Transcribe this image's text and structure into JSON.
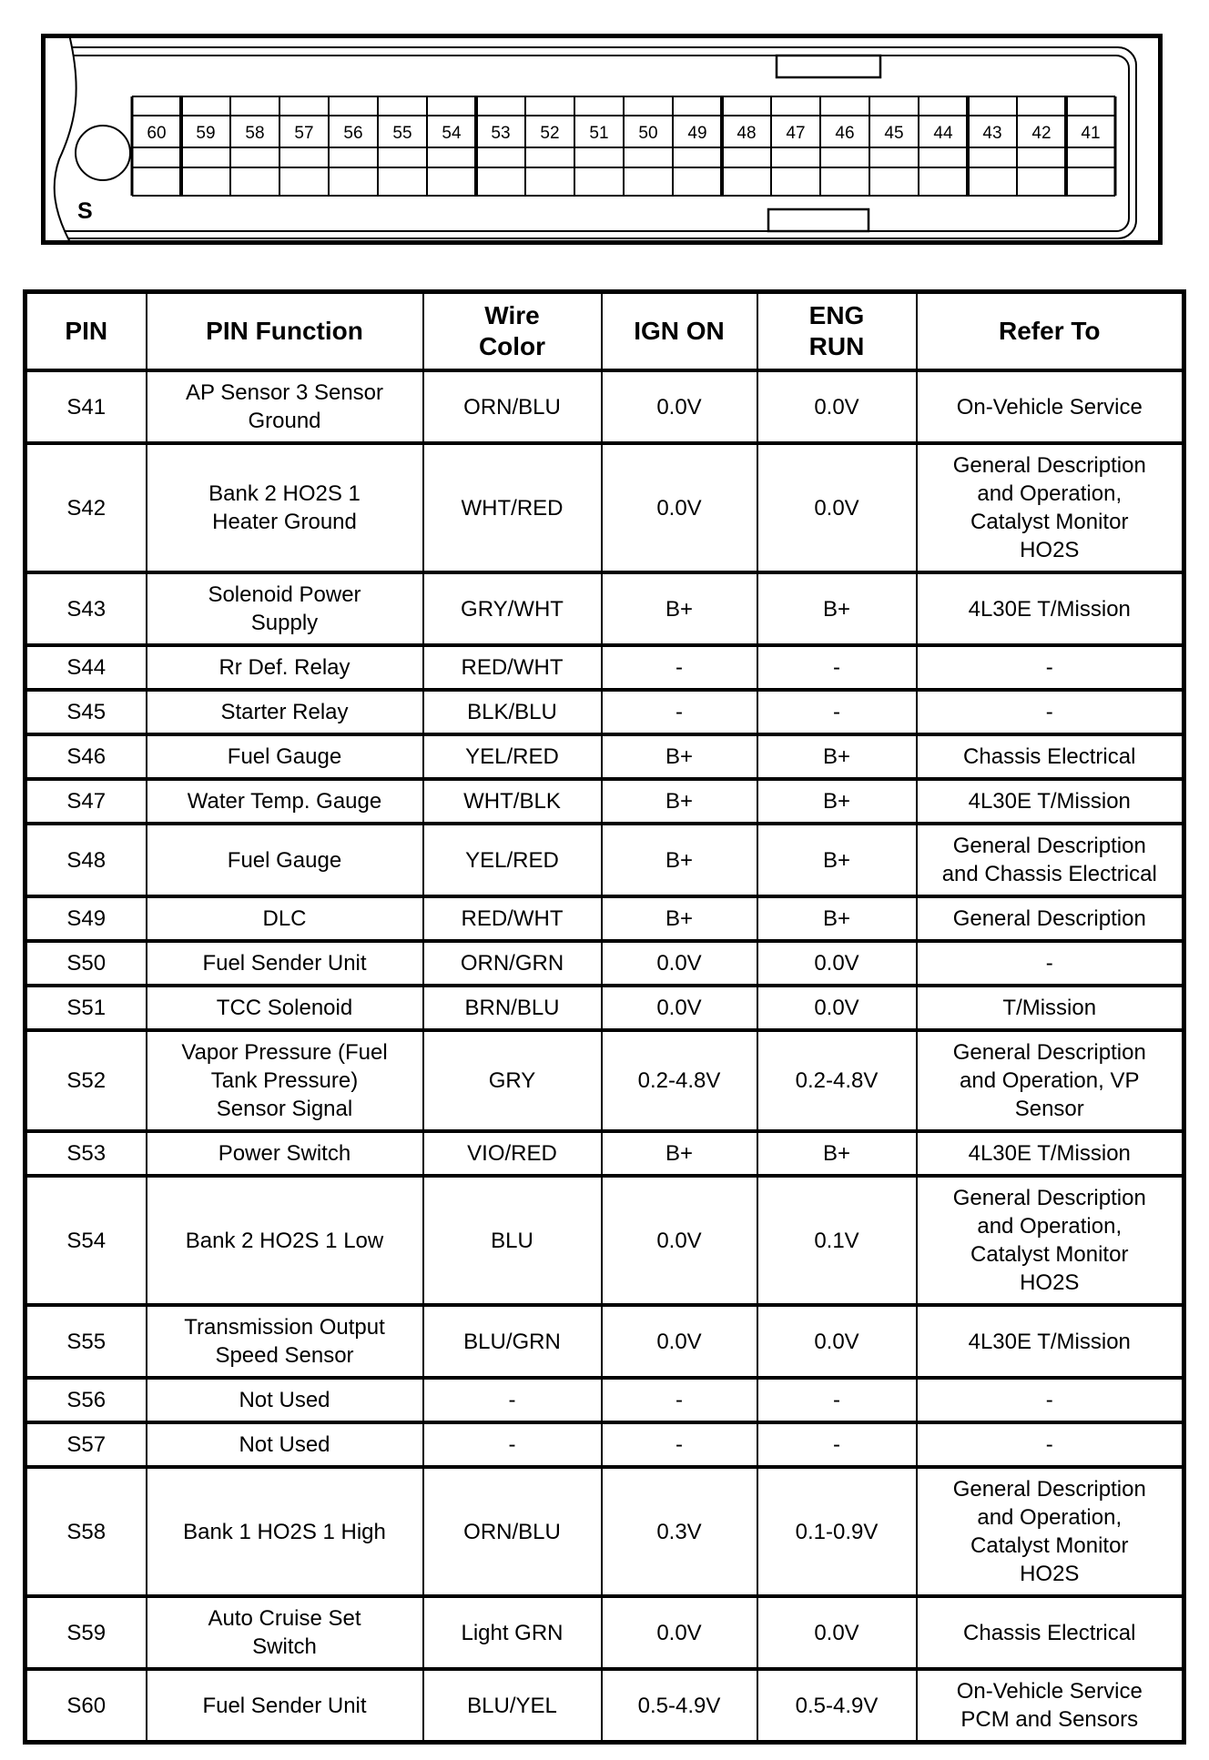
{
  "figure": {
    "connector_label": "S",
    "pin_numbers": [
      "60",
      "59",
      "58",
      "57",
      "56",
      "55",
      "54",
      "53",
      "52",
      "51",
      "50",
      "49",
      "48",
      "47",
      "46",
      "45",
      "44",
      "43",
      "42",
      "41"
    ]
  },
  "table": {
    "headers": {
      "pin": "PIN",
      "function": "PIN Function",
      "wire": "Wire\nColor",
      "ign": "IGN ON",
      "eng": "ENG\nRUN",
      "refer": "Refer To"
    },
    "rows": [
      {
        "pin": "S41",
        "function": "AP Sensor 3 Sensor\nGround",
        "wire": "ORN/BLU",
        "ign": "0.0V",
        "eng": "0.0V",
        "refer": "On-Vehicle Service"
      },
      {
        "pin": "S42",
        "function": "Bank 2 HO2S 1\nHeater Ground",
        "wire": "WHT/RED",
        "ign": "0.0V",
        "eng": "0.0V",
        "refer": "General Description\nand Operation,\nCatalyst Monitor\nHO2S"
      },
      {
        "pin": "S43",
        "function": "Solenoid Power\nSupply",
        "wire": "GRY/WHT",
        "ign": "B+",
        "eng": "B+",
        "refer": "4L30E T/Mission"
      },
      {
        "pin": "S44",
        "function": "Rr Def. Relay",
        "wire": "RED/WHT",
        "ign": "-",
        "eng": "-",
        "refer": "-"
      },
      {
        "pin": "S45",
        "function": "Starter Relay",
        "wire": "BLK/BLU",
        "ign": "-",
        "eng": "-",
        "refer": "-"
      },
      {
        "pin": "S46",
        "function": "Fuel Gauge",
        "wire": "YEL/RED",
        "ign": "B+",
        "eng": "B+",
        "refer": "Chassis Electrical"
      },
      {
        "pin": "S47",
        "function": "Water Temp. Gauge",
        "wire": "WHT/BLK",
        "ign": "B+",
        "eng": "B+",
        "refer": "4L30E T/Mission"
      },
      {
        "pin": "S48",
        "function": "Fuel Gauge",
        "wire": "YEL/RED",
        "ign": "B+",
        "eng": "B+",
        "refer": "General Description\nand Chassis Electrical"
      },
      {
        "pin": "S49",
        "function": "DLC",
        "wire": "RED/WHT",
        "ign": "B+",
        "eng": "B+",
        "refer": "General Description"
      },
      {
        "pin": "S50",
        "function": "Fuel Sender Unit",
        "wire": "ORN/GRN",
        "ign": "0.0V",
        "eng": "0.0V",
        "refer": "-"
      },
      {
        "pin": "S51",
        "function": "TCC Solenoid",
        "wire": "BRN/BLU",
        "ign": "0.0V",
        "eng": "0.0V",
        "refer": "T/Mission"
      },
      {
        "pin": "S52",
        "function": "Vapor Pressure (Fuel\nTank Pressure)\nSensor Signal",
        "wire": "GRY",
        "ign": "0.2-4.8V",
        "eng": "0.2-4.8V",
        "refer": "General Description\nand Operation, VP\nSensor"
      },
      {
        "pin": "S53",
        "function": "Power Switch",
        "wire": "VIO/RED",
        "ign": "B+",
        "eng": "B+",
        "refer": "4L30E T/Mission"
      },
      {
        "pin": "S54",
        "function": "Bank 2 HO2S 1 Low",
        "wire": "BLU",
        "ign": "0.0V",
        "eng": "0.1V",
        "refer": "General Description\nand Operation,\nCatalyst Monitor\nHO2S"
      },
      {
        "pin": "S55",
        "function": "Transmission Output\nSpeed Sensor",
        "wire": "BLU/GRN",
        "ign": "0.0V",
        "eng": "0.0V",
        "refer": "4L30E T/Mission"
      },
      {
        "pin": "S56",
        "function": "Not Used",
        "wire": "-",
        "ign": "-",
        "eng": "-",
        "refer": "-"
      },
      {
        "pin": "S57",
        "function": "Not Used",
        "wire": "-",
        "ign": "-",
        "eng": "-",
        "refer": "-"
      },
      {
        "pin": "S58",
        "function": "Bank 1 HO2S 1 High",
        "wire": "ORN/BLU",
        "ign": "0.3V",
        "eng": "0.1-0.9V",
        "refer": "General Description\nand Operation,\nCatalyst Monitor\nHO2S"
      },
      {
        "pin": "S59",
        "function": "Auto Cruise Set\nSwitch",
        "wire": "Light GRN",
        "ign": "0.0V",
        "eng": "0.0V",
        "refer": "Chassis Electrical"
      },
      {
        "pin": "S60",
        "function": "Fuel Sender Unit",
        "wire": "BLU/YEL",
        "ign": "0.5-4.9V",
        "eng": "0.5-4.9V",
        "refer": "On-Vehicle Service\nPCM and Sensors"
      }
    ]
  }
}
